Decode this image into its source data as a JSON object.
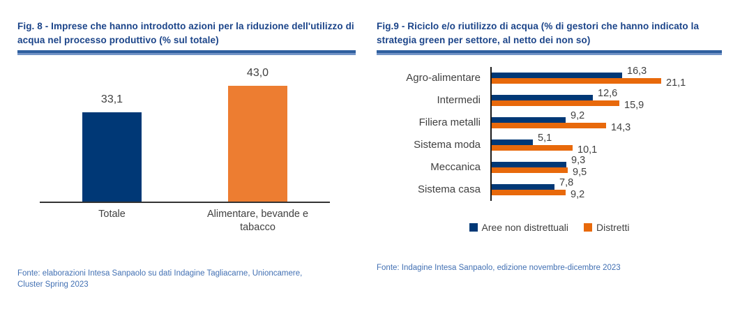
{
  "chart_data": [
    {
      "type": "bar",
      "title": "Fig. 8 - Imprese che hanno introdotto azioni per la riduzione dell'utilizzo di acqua nel processo produttivo (% sul totale)",
      "source": "Fonte: elaborazioni Intesa Sanpaolo su dati Indagine Tagliacarne, Unioncamere, Cluster Spring 2023",
      "categories": [
        "Totale",
        "Alimentare, bevande e tabacco"
      ],
      "values": [
        33.1,
        43.0
      ],
      "value_labels": [
        "33,1",
        "43,0"
      ],
      "bar_colors": [
        "#003876",
        "#ED7D31"
      ],
      "ylim": [
        0,
        50
      ],
      "grid": false,
      "legend_position": "none"
    },
    {
      "type": "bar",
      "orientation": "horizontal",
      "title": "Fig.9 - Riciclo e/o riutilizzo di acqua (% di gestori che hanno indicato la strategia green per settore, al netto dei non so)",
      "source": "Fonte: Indagine Intesa Sanpaolo, edizione novembre-dicembre 2023",
      "categories": [
        "Agro-alimentare",
        "Intermedi",
        "Filiera metalli",
        "Sistema moda",
        "Meccanica",
        "Sistema casa"
      ],
      "series": [
        {
          "name": "Aree non distrettuali",
          "color": "#003876",
          "values": [
            16.3,
            12.6,
            9.2,
            5.1,
            9.3,
            7.8
          ],
          "value_labels": [
            "16,3",
            "12,6",
            "9,2",
            "5,1",
            "9,3",
            "7,8"
          ]
        },
        {
          "name": "Distretti",
          "color": "#E8690B",
          "values": [
            21.1,
            15.9,
            14.3,
            10.1,
            9.5,
            9.2
          ],
          "value_labels": [
            "21,1",
            "15,9",
            "14,3",
            "10,1",
            "9,5",
            "9,2"
          ]
        }
      ],
      "xlim": [
        0,
        25
      ],
      "grid": false,
      "legend_position": "bottom"
    }
  ],
  "colors": {
    "title_blue": "#1B4489",
    "rule_blue": "#2F5F9F",
    "source_blue": "#4270B3",
    "navy_series": "#003876",
    "orange_fig8": "#ED7D31",
    "orange_fig9": "#E8690B",
    "label_gray": "#404040"
  }
}
